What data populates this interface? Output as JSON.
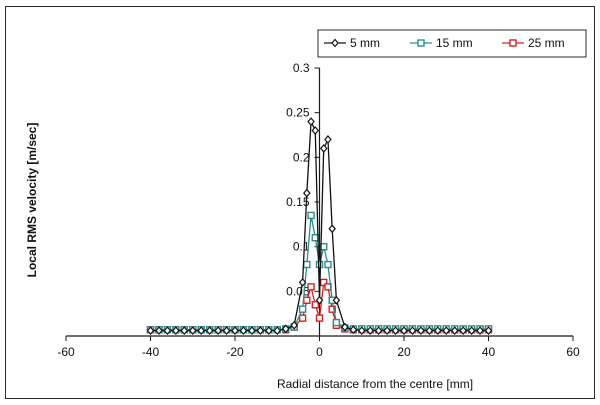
{
  "chart_data": {
    "type": "line",
    "xlabel": "Radial distance from the centre [mm]",
    "ylabel": "Local RMS velocity [m/sec]",
    "xlim": [
      -60,
      60
    ],
    "ylim": [
      0,
      0.3
    ],
    "xticks": [
      "-60",
      "-40",
      "-20",
      "0",
      "20",
      "40",
      "60"
    ],
    "yticks": [
      "0.05",
      "0.1",
      "0.15",
      "0.2",
      "0.25",
      "0.3"
    ],
    "grid": false,
    "legend_position": "top-right",
    "series": [
      {
        "name": "5 mm",
        "color": "#111111",
        "marker": "diamond",
        "x": [
          -40,
          -38,
          -36,
          -34,
          -32,
          -30,
          -28,
          -26,
          -24,
          -22,
          -20,
          -18,
          -16,
          -14,
          -12,
          -10,
          -8,
          -6,
          -4,
          -3,
          -2,
          -1,
          0,
          1,
          2,
          3,
          4,
          6,
          8,
          10,
          12,
          14,
          16,
          18,
          20,
          22,
          24,
          26,
          28,
          30,
          32,
          34,
          36,
          38,
          40
        ],
        "y": [
          0.006,
          0.006,
          0.006,
          0.006,
          0.006,
          0.006,
          0.006,
          0.006,
          0.006,
          0.006,
          0.006,
          0.006,
          0.006,
          0.006,
          0.006,
          0.006,
          0.008,
          0.012,
          0.06,
          0.16,
          0.24,
          0.23,
          0.04,
          0.21,
          0.22,
          0.12,
          0.04,
          0.01,
          0.007,
          0.006,
          0.006,
          0.006,
          0.006,
          0.006,
          0.006,
          0.006,
          0.006,
          0.006,
          0.006,
          0.006,
          0.006,
          0.006,
          0.006,
          0.006,
          0.006
        ]
      },
      {
        "name": "15 mm",
        "color": "#2e8b8b",
        "marker": "square",
        "x": [
          -40,
          -38,
          -36,
          -34,
          -32,
          -30,
          -28,
          -26,
          -24,
          -22,
          -20,
          -18,
          -16,
          -14,
          -12,
          -10,
          -8,
          -6,
          -4,
          -3,
          -2,
          -1,
          0,
          1,
          2,
          3,
          4,
          6,
          8,
          10,
          12,
          14,
          16,
          18,
          20,
          22,
          24,
          26,
          28,
          30,
          32,
          34,
          36,
          38,
          40
        ],
        "y": [
          0.007,
          0.007,
          0.007,
          0.007,
          0.007,
          0.007,
          0.007,
          0.007,
          0.007,
          0.007,
          0.007,
          0.007,
          0.007,
          0.007,
          0.007,
          0.007,
          0.008,
          0.01,
          0.03,
          0.08,
          0.135,
          0.11,
          0.08,
          0.1,
          0.08,
          0.04,
          0.015,
          0.009,
          0.008,
          0.008,
          0.008,
          0.008,
          0.008,
          0.008,
          0.008,
          0.008,
          0.008,
          0.008,
          0.008,
          0.008,
          0.008,
          0.008,
          0.008,
          0.008,
          0.008
        ]
      },
      {
        "name": "25 mm",
        "color": "#d62020",
        "marker": "square",
        "x": [
          -40,
          -38,
          -36,
          -34,
          -32,
          -30,
          -28,
          -26,
          -24,
          -22,
          -20,
          -18,
          -16,
          -14,
          -12,
          -10,
          -8,
          -6,
          -4,
          -3,
          -2,
          -1,
          0,
          1,
          2,
          3,
          4,
          6,
          8,
          10,
          12,
          14,
          16,
          18,
          20,
          22,
          24,
          26,
          28,
          30,
          32,
          34,
          36,
          38,
          40
        ],
        "y": [
          0.007,
          0.007,
          0.007,
          0.007,
          0.007,
          0.007,
          0.007,
          0.007,
          0.007,
          0.007,
          0.007,
          0.007,
          0.007,
          0.007,
          0.007,
          0.007,
          0.007,
          0.01,
          0.02,
          0.04,
          0.055,
          0.035,
          0.02,
          0.06,
          0.055,
          0.03,
          0.012,
          0.008,
          0.007,
          0.007,
          0.007,
          0.007,
          0.007,
          0.007,
          0.007,
          0.007,
          0.007,
          0.007,
          0.007,
          0.007,
          0.007,
          0.007,
          0.007,
          0.007,
          0.007
        ]
      }
    ]
  }
}
